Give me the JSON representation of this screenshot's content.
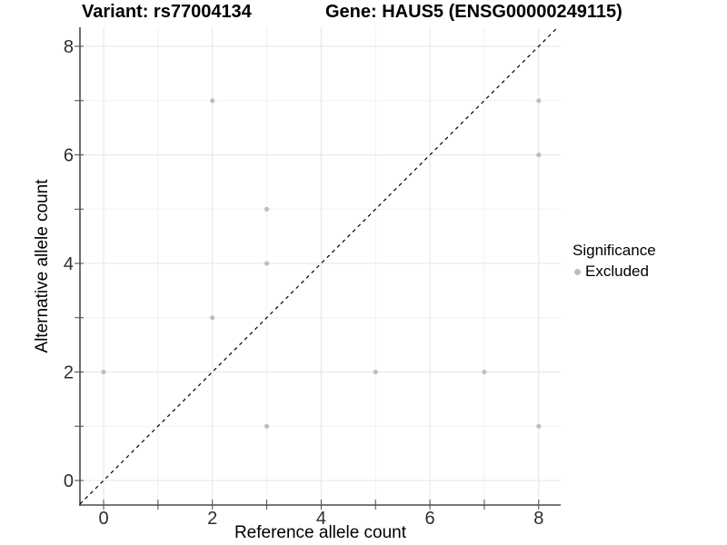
{
  "chart_data": {
    "type": "scatter",
    "title_left": "Variant: rs77004134",
    "title_right": "Gene: HAUS5 (ENSG00000249115)",
    "xlabel": "Reference allele count",
    "ylabel": "Alternative allele count",
    "xlim": [
      -0.45,
      8.45
    ],
    "ylim": [
      -0.45,
      8.45
    ],
    "x_ticks": [
      0,
      2,
      4,
      6,
      8
    ],
    "y_ticks": [
      0,
      2,
      4,
      6,
      8
    ],
    "minor_ticks": [
      1,
      3,
      5,
      7
    ],
    "grid": true,
    "identity_line": {
      "style": "dashed",
      "slope": 1,
      "intercept": 0
    },
    "series": [
      {
        "name": "Excluded",
        "color": "#bebebe",
        "points": [
          [
            0,
            2
          ],
          [
            2,
            3
          ],
          [
            2,
            7
          ],
          [
            3,
            1
          ],
          [
            3,
            4
          ],
          [
            3,
            5
          ],
          [
            5,
            2
          ],
          [
            7,
            2
          ],
          [
            8,
            1
          ],
          [
            8,
            6
          ],
          [
            8,
            7
          ]
        ]
      }
    ],
    "legend": {
      "title": "Significance",
      "position": "right",
      "items": [
        {
          "label": "Excluded",
          "color": "#bebebe"
        }
      ]
    },
    "colors": {
      "point": "#bebebe",
      "axis": "#4a4a4a",
      "grid_major": "#e4e4e4",
      "grid_minor": "#f1f1f1",
      "identity_line": "#000000"
    }
  }
}
